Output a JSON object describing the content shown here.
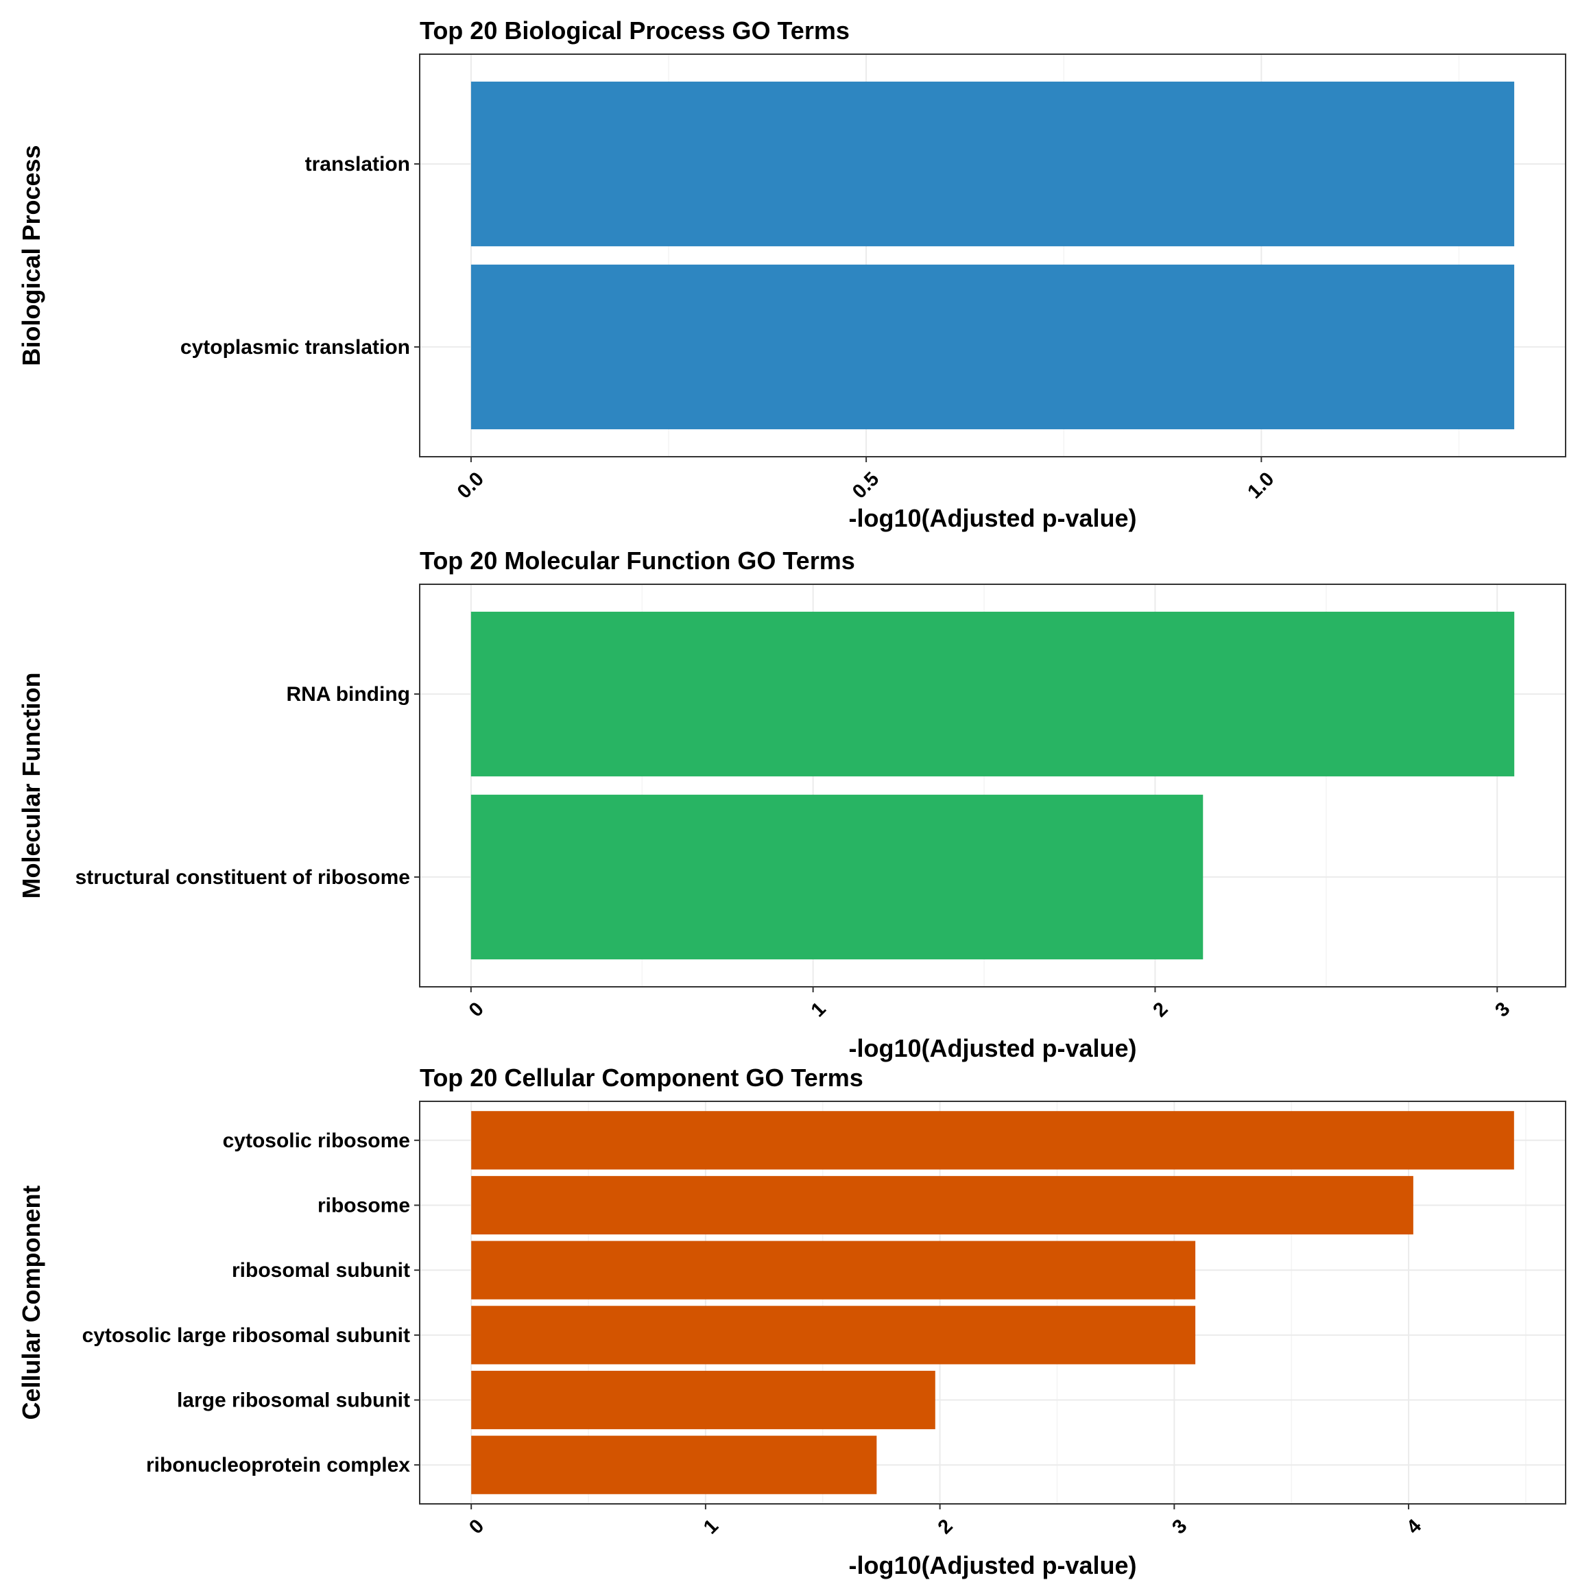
{
  "chart_data": [
    {
      "type": "bar",
      "orientation": "horizontal",
      "title": "Top 20 Biological Process GO Terms",
      "ylabel": "Biological Process",
      "xlabel": "-log10(Adjusted p-value)",
      "categories": [
        "translation",
        "cytoplasmic translation"
      ],
      "values": [
        1.32,
        1.32
      ],
      "xlim": [
        -0.065,
        1.385
      ],
      "xticks": [
        0.0,
        0.5,
        1.0
      ],
      "xtick_labels": [
        "0.0",
        "0.5",
        "1.0"
      ],
      "color": "#2e86c1",
      "grid": true,
      "legend": "none"
    },
    {
      "type": "bar",
      "orientation": "horizontal",
      "title": "Top 20 Molecular Function GO Terms",
      "ylabel": "Molecular Function",
      "xlabel": "-log10(Adjusted p-value)",
      "categories": [
        "RNA binding",
        "structural constituent of ribosome"
      ],
      "values": [
        3.05,
        2.14
      ],
      "xlim": [
        -0.15,
        3.2
      ],
      "xticks": [
        0,
        1,
        2,
        3
      ],
      "xtick_labels": [
        "0",
        "1",
        "2",
        "3"
      ],
      "color": "#28b463",
      "grid": true,
      "legend": "none"
    },
    {
      "type": "bar",
      "orientation": "horizontal",
      "title": "Top 20 Cellular Component GO Terms",
      "ylabel": "Cellular Component",
      "xlabel": "-log10(Adjusted p-value)",
      "categories": [
        "cytosolic ribosome",
        "ribosome",
        "ribosomal subunit",
        "cytosolic large ribosomal subunit",
        "large ribosomal subunit",
        "ribonucleoprotein complex"
      ],
      "values": [
        4.45,
        4.02,
        3.09,
        3.09,
        1.98,
        1.73
      ],
      "xlim": [
        -0.22,
        4.67
      ],
      "xticks": [
        0,
        1,
        2,
        3,
        4
      ],
      "xtick_labels": [
        "0",
        "1",
        "2",
        "3",
        "4"
      ],
      "color": "#d35400",
      "grid": true,
      "legend": "none"
    }
  ]
}
